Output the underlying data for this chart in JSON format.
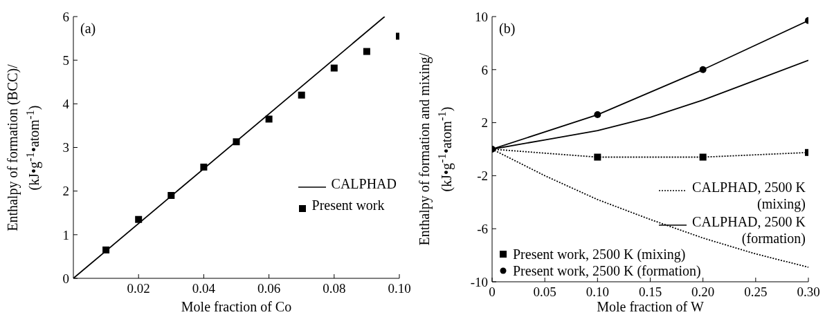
{
  "chart_data": [
    {
      "type": "scatter",
      "xlabel": "Mole fraction of Co",
      "ylabel": "Enthalpy of formation (BCC)/\n(kJ•g$^{-1}$•atom$^{-1}$)",
      "annotations": [
        "(a)"
      ],
      "xlim": [
        0,
        0.1
      ],
      "ylim": [
        0,
        6
      ],
      "xticks": [
        0.02,
        0.04,
        0.06,
        0.08,
        {
          "value": 0.1,
          "label": "0.10"
        }
      ],
      "yticks": [
        0,
        1,
        2,
        3,
        4,
        5,
        6
      ],
      "legend": "right",
      "grid": false,
      "series": [
        {
          "name": "CALPHAD",
          "type": "line",
          "color": "#000000",
          "line_style": "solid",
          "x": [
            0,
            0.0955
          ],
          "values": [
            0,
            6
          ]
        },
        {
          "name": "Present work",
          "marker": "square",
          "color": "#000000",
          "x": [
            0.01,
            0.02,
            0.03,
            0.04,
            0.05,
            0.06,
            0.07,
            0.08,
            0.09,
            0.1
          ],
          "values": [
            0.65,
            1.35,
            1.9,
            2.55,
            3.13,
            3.65,
            4.2,
            4.82,
            5.2,
            5.55
          ]
        }
      ]
    },
    {
      "type": "line",
      "xlabel": "Mole fraction of W",
      "ylabel": "Enthalpy of formation and mixing/\n(kJ•g$^{-1}$•atom$^{-1}$)",
      "annotations": [
        "(b)"
      ],
      "xlim": [
        0,
        0.3
      ],
      "ylim": [
        -10,
        10
      ],
      "xticks": [
        0,
        0.05,
        {
          "value": 0.1,
          "label": "0.10"
        },
        0.15,
        {
          "value": 0.2,
          "label": "0.20"
        },
        0.25,
        {
          "value": 0.3,
          "label": "0.30"
        }
      ],
      "yticks": [
        -10,
        -6,
        -2,
        2,
        6,
        10
      ],
      "legend": "right",
      "grid": false,
      "series": [
        {
          "name": "CALPHAD, 2500 K\n(mixing)",
          "color": "#000000",
          "line_style": "dotted",
          "x": [
            0,
            0.05,
            0.1,
            0.15,
            0.2,
            0.25,
            0.3
          ],
          "values": [
            0,
            -2.0,
            -3.8,
            -5.3,
            -6.7,
            -7.9,
            -8.9
          ]
        },
        {
          "name": "CALPHAD, 2500 K\n(formation)",
          "color": "#000000",
          "line_style": "solid",
          "x": [
            0,
            0.05,
            0.1,
            0.15,
            0.2,
            0.25,
            0.3
          ],
          "values": [
            0,
            0.7,
            1.4,
            2.4,
            3.7,
            5.2,
            6.7
          ]
        },
        {
          "color": "#000000",
          "line_style": "dotted",
          "x": [
            0,
            0.1,
            0.2,
            0.3
          ],
          "values": [
            0,
            -0.6,
            -0.6,
            -0.25
          ]
        },
        {
          "color": "#000000",
          "line_style": "solid",
          "x": [
            0,
            0.1,
            0.2,
            0.3
          ],
          "values": [
            0,
            2.6,
            6.0,
            9.7
          ]
        },
        {
          "name": "Present work, 2500 K (mixing)",
          "type": "scatter",
          "marker": "square",
          "color": "#000000",
          "x": [
            0.1,
            0.2,
            0.3
          ],
          "values": [
            -0.6,
            -0.6,
            -0.25
          ]
        },
        {
          "name": "Present work, 2500 K (formation)",
          "type": "scatter",
          "marker": "circle",
          "color": "#000000",
          "x": [
            0,
            0.1,
            0.2,
            0.3
          ],
          "values": [
            0,
            2.6,
            6.0,
            9.7
          ]
        }
      ]
    }
  ]
}
